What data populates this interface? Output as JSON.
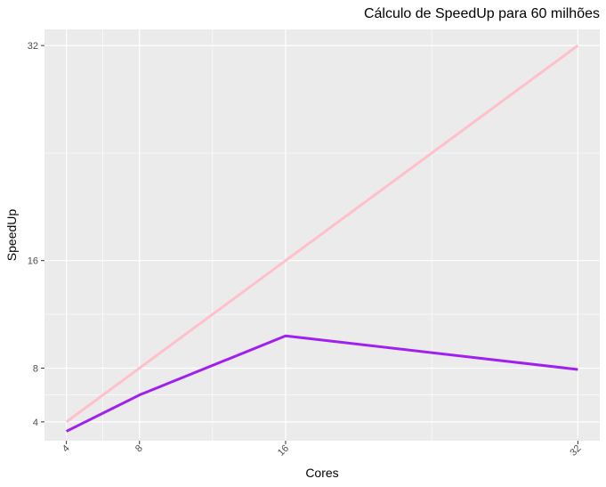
{
  "chart_data": {
    "type": "line",
    "title": "Cálculo de SpeedUp para 60 milhões",
    "xlabel": "Cores",
    "ylabel": "SpeedUp",
    "x": [
      4,
      8,
      16,
      32
    ],
    "xticks": [
      "4",
      "8",
      "16",
      "32"
    ],
    "yticks": [
      "4",
      "8",
      "16",
      "32"
    ],
    "xlim": [
      2.8,
      33.2
    ],
    "ylim": [
      2.6,
      33.2
    ],
    "grid": true,
    "legend": "none",
    "series": [
      {
        "values": [
          4,
          8,
          16,
          32
        ],
        "color": "#ffc0cb"
      },
      {
        "values": [
          3.3,
          6,
          10.4,
          7.9
        ],
        "color": "#a020f0"
      }
    ],
    "panel_background": "#ebebeb",
    "gridline_color": "#ffffff"
  }
}
